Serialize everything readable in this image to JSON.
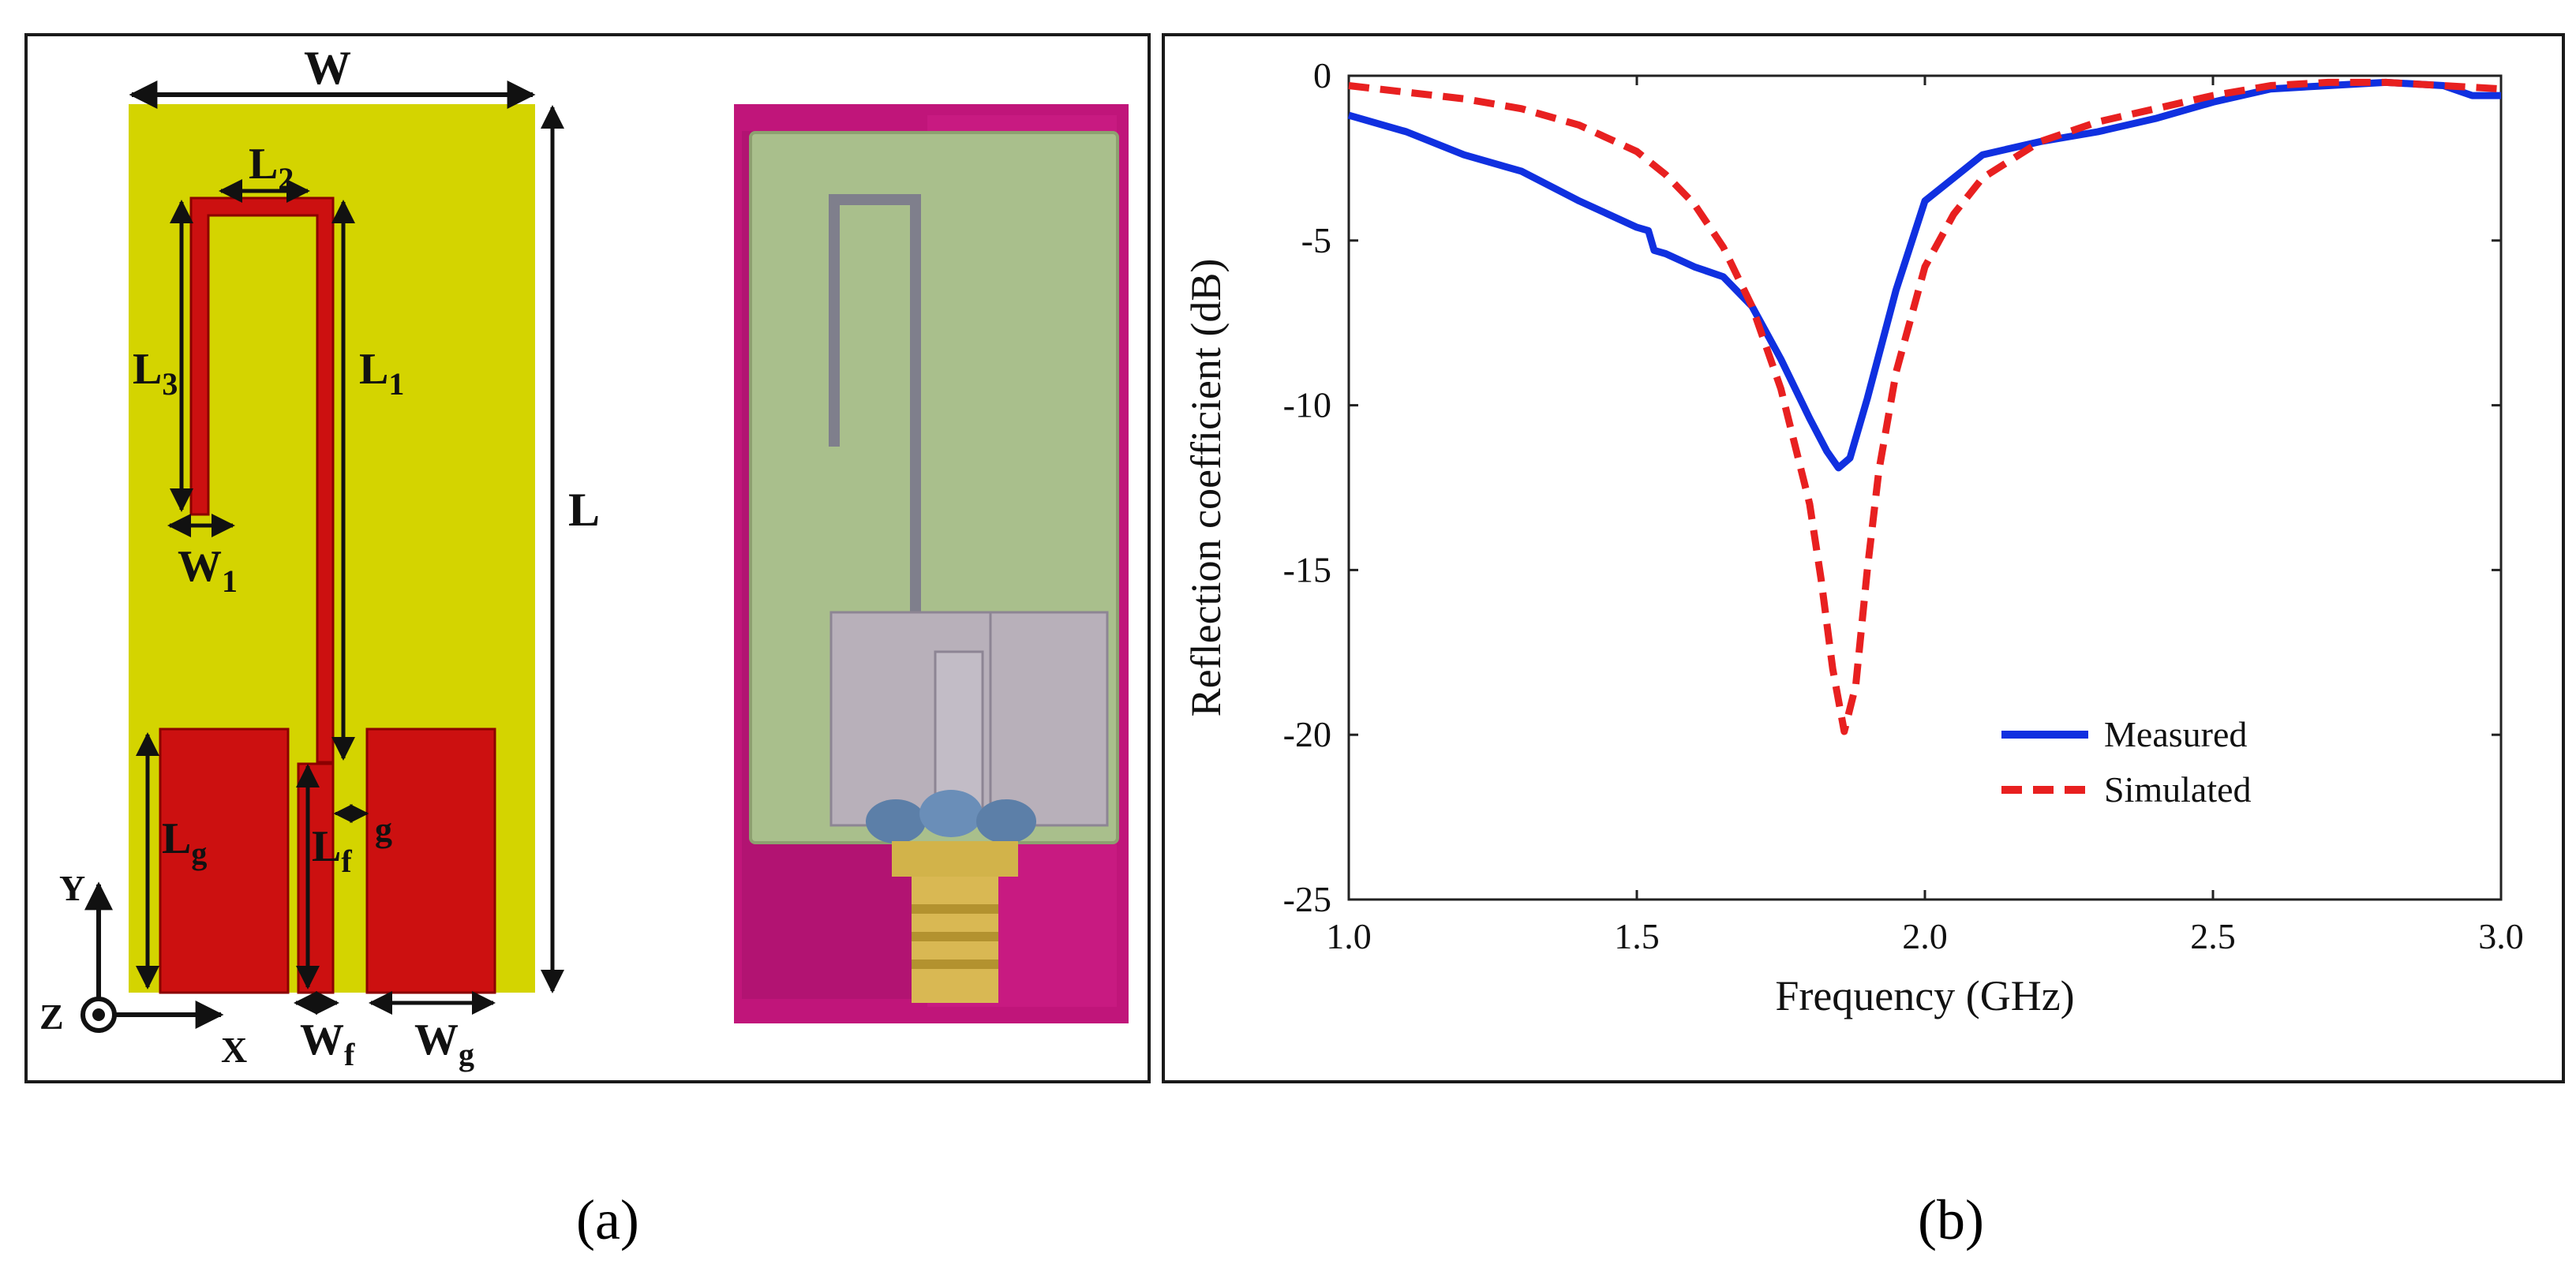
{
  "captions": {
    "a": "(a)",
    "b": "(b)"
  },
  "diagram": {
    "labels": {
      "W": "W",
      "L": "L",
      "L1": "L",
      "L1_sub": "1",
      "L2": "L",
      "L2_sub": "2",
      "L3": "L",
      "L3_sub": "3",
      "W1": "W",
      "W1_sub": "1",
      "Lg": "L",
      "Lg_sub": "g",
      "Lf": "L",
      "Lf_sub": "f",
      "g": "g",
      "Wf": "W",
      "Wf_sub": "f",
      "Wg": "W",
      "Wg_sub": "g",
      "axis_y": "Y",
      "axis_x": "X",
      "axis_z": "Z"
    },
    "colors": {
      "substrate": "#d4d400",
      "metal": "#cc1010",
      "photo_bg": "#c0157a",
      "pcb": "#a9bf8c"
    }
  },
  "chart_data": {
    "type": "line",
    "title": "",
    "xlabel": "Frequency (GHz)",
    "ylabel": "Reflection coefficient (dB)",
    "xlim": [
      1.0,
      3.0
    ],
    "ylim": [
      -25,
      0
    ],
    "xticks": [
      "1.0",
      "1.5",
      "2.0",
      "2.5",
      "3.0"
    ],
    "yticks": [
      "0",
      "-5",
      "-10",
      "-15",
      "-20",
      "-25"
    ],
    "xtick_values": [
      1.0,
      1.5,
      2.0,
      2.5,
      3.0
    ],
    "ytick_values": [
      0,
      -5,
      -10,
      -15,
      -20,
      -25
    ],
    "series": [
      {
        "name": "Measured",
        "color": "#1030e0",
        "dash": "solid",
        "x": [
          1.0,
          1.1,
          1.2,
          1.3,
          1.4,
          1.5,
          1.52,
          1.53,
          1.55,
          1.6,
          1.65,
          1.7,
          1.75,
          1.8,
          1.83,
          1.85,
          1.87,
          1.9,
          1.95,
          2.0,
          2.05,
          2.1,
          2.2,
          2.3,
          2.4,
          2.5,
          2.6,
          2.7,
          2.8,
          2.9,
          2.95,
          3.0
        ],
        "y": [
          -1.2,
          -1.7,
          -2.4,
          -2.9,
          -3.8,
          -4.6,
          -4.7,
          -5.3,
          -5.4,
          -5.8,
          -6.1,
          -7.0,
          -8.6,
          -10.4,
          -11.4,
          -11.9,
          -11.6,
          -9.8,
          -6.5,
          -3.8,
          -3.1,
          -2.4,
          -2.0,
          -1.7,
          -1.3,
          -0.8,
          -0.4,
          -0.3,
          -0.2,
          -0.3,
          -0.6,
          -0.6
        ]
      },
      {
        "name": "Simulated",
        "color": "#e82020",
        "dash": "dashed",
        "x": [
          1.0,
          1.1,
          1.2,
          1.3,
          1.4,
          1.5,
          1.55,
          1.6,
          1.65,
          1.7,
          1.75,
          1.8,
          1.82,
          1.84,
          1.86,
          1.88,
          1.9,
          1.92,
          1.95,
          2.0,
          2.05,
          2.1,
          2.2,
          2.3,
          2.4,
          2.5,
          2.6,
          2.7,
          2.8,
          2.9,
          3.0
        ],
        "y": [
          -0.3,
          -0.5,
          -0.7,
          -1.0,
          -1.5,
          -2.3,
          -3.0,
          -3.9,
          -5.2,
          -7.0,
          -9.5,
          -13.0,
          -15.3,
          -18.0,
          -19.9,
          -18.5,
          -15.0,
          -12.0,
          -9.0,
          -5.8,
          -4.2,
          -3.1,
          -2.0,
          -1.4,
          -1.0,
          -0.6,
          -0.3,
          -0.2,
          -0.2,
          -0.3,
          -0.4
        ]
      }
    ],
    "legend": {
      "position": "bottom-right",
      "entries": [
        "Measured",
        "Simulated"
      ]
    }
  }
}
